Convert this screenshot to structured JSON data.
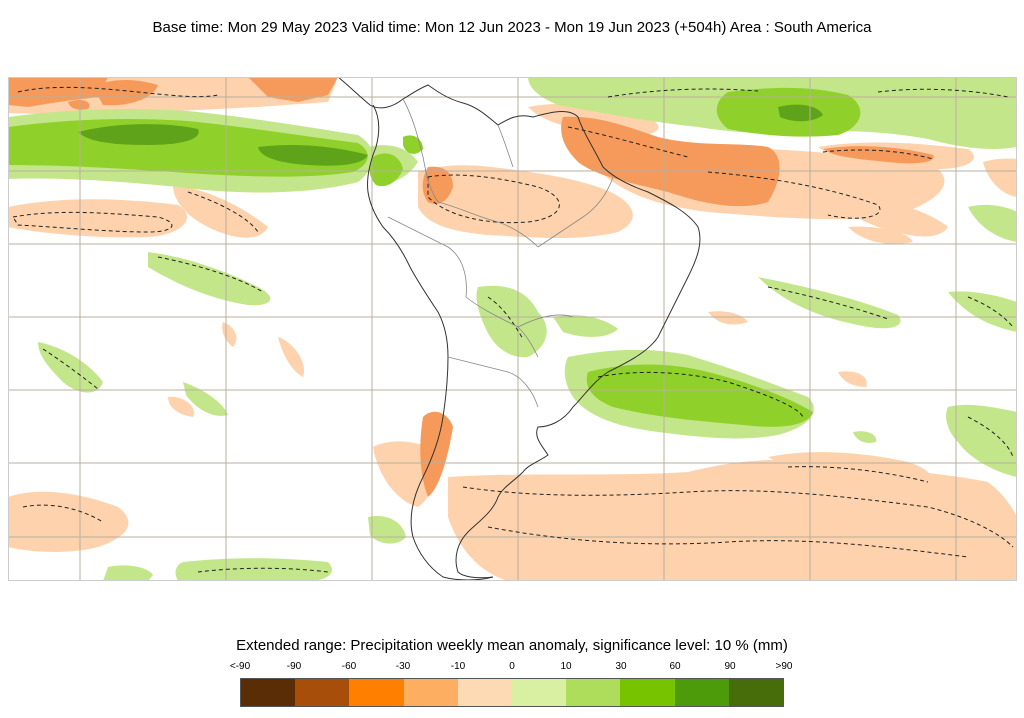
{
  "header": {
    "title": "Base time: Mon 29 May 2023 Valid time: Mon 12 Jun 2023 - Mon 19 Jun 2023 (+504h) Area : South America"
  },
  "legend": {
    "title": "Extended range: Precipitation weekly mean anomaly, significance level: 10 % (mm)",
    "labels": [
      "<-90",
      "-90",
      "-60",
      "-30",
      "-10",
      "0",
      "10",
      "30",
      "60",
      "90",
      ">90"
    ],
    "colors": [
      "#5a2d06",
      "#a84e0b",
      "#ff7f00",
      "#fdae61",
      "#fdd9b4",
      "#d9f0a3",
      "#addd5a",
      "#78c300",
      "#4d9a0a",
      "#466d0a"
    ]
  },
  "map": {
    "region": "South America",
    "anomaly_colors": {
      "dry_strong": "#f59a5a",
      "dry": "#fdd0a8",
      "wet": "#c4e68a",
      "wet_mid": "#8fd12a",
      "wet_strong": "#5fa31a",
      "coast": "#333333",
      "border": "#888888",
      "grid": "#b8b0a0",
      "significance": "#222222"
    }
  }
}
